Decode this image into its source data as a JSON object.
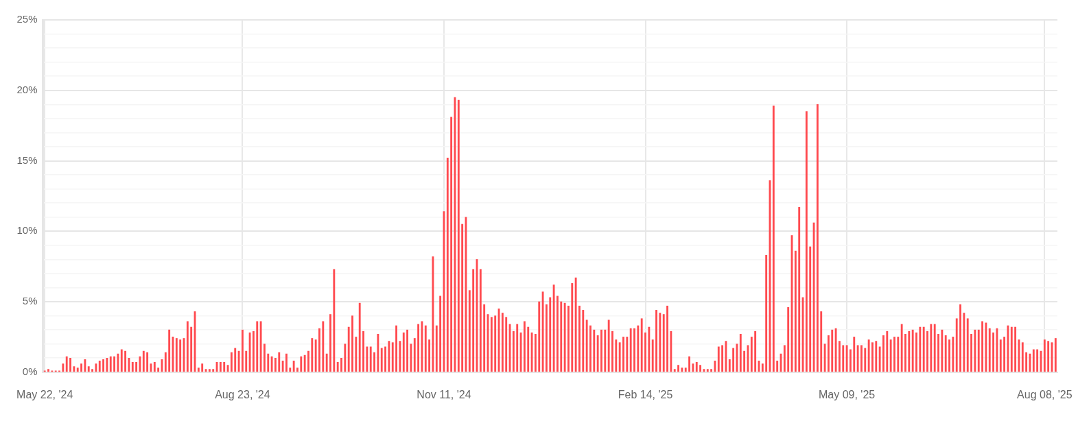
{
  "chart_data": {
    "type": "bar",
    "color": "#ff4a4f",
    "grid": true,
    "categories": [
      "May 22, '24",
      null,
      null,
      null,
      null,
      null,
      null,
      null,
      null,
      null,
      null,
      null,
      null,
      null,
      null,
      null,
      null,
      null,
      null,
      null,
      null,
      null,
      null,
      null,
      null,
      null,
      null,
      null,
      null,
      null,
      null,
      null,
      null,
      null,
      null,
      null,
      null,
      null,
      null,
      null,
      null,
      null,
      null,
      null,
      null,
      null,
      null,
      null,
      null,
      null,
      null,
      null,
      null,
      null,
      "Aug 23, '24",
      null,
      null,
      null,
      null,
      null,
      null,
      null,
      null,
      null,
      null,
      null,
      null,
      null,
      null,
      null,
      null,
      null,
      null,
      null,
      null,
      null,
      null,
      null,
      null,
      null,
      null,
      null,
      null,
      null,
      null,
      null,
      null,
      null,
      null,
      null,
      null,
      null,
      null,
      null,
      null,
      null,
      null,
      null,
      null,
      null,
      null,
      null,
      null,
      null,
      null,
      null,
      null,
      null,
      null,
      "Nov 11, '24",
      null,
      null,
      null,
      null,
      null,
      null,
      null,
      null,
      null,
      null,
      null,
      null,
      null,
      null,
      null,
      null,
      null,
      null,
      null,
      null,
      null,
      null,
      null,
      null,
      null,
      null,
      null,
      null,
      null,
      null,
      null,
      null,
      null,
      null,
      null,
      null,
      null,
      null,
      null,
      null,
      null,
      null,
      null,
      null,
      null,
      null,
      null,
      null,
      null,
      null,
      null,
      null,
      null,
      null,
      "Feb 14, '25",
      null,
      null,
      null,
      null,
      null,
      null,
      null,
      null,
      null,
      null,
      null,
      null,
      null,
      null,
      null,
      null,
      null,
      null,
      null,
      null,
      null,
      null,
      null,
      null,
      null,
      null,
      null,
      null,
      null,
      null,
      null,
      null,
      null,
      null,
      null,
      null,
      null,
      null,
      null,
      null,
      null,
      null,
      null,
      null,
      null,
      null,
      null,
      null,
      null,
      null,
      null,
      null,
      null,
      null,
      "May 09, '25",
      null,
      null,
      null,
      null,
      null,
      null,
      null,
      null,
      null,
      null,
      null,
      null,
      null,
      null,
      null,
      null,
      null,
      null,
      null,
      null,
      null,
      null,
      null,
      null,
      null,
      null,
      null,
      null,
      null,
      null,
      null,
      null,
      null,
      null,
      null,
      null,
      null,
      null,
      null,
      null,
      null,
      null,
      null,
      null,
      null,
      null,
      null,
      null,
      null,
      null,
      null,
      null,
      null,
      "Aug 08, '25",
      null,
      null,
      null
    ],
    "values": [
      0.1,
      0.2,
      0.1,
      0.1,
      0.1,
      0.6,
      1.1,
      1.0,
      0.4,
      0.3,
      0.6,
      0.9,
      0.4,
      0.2,
      0.6,
      0.8,
      0.9,
      1.0,
      1.1,
      1.1,
      1.3,
      1.6,
      1.5,
      1.0,
      0.7,
      0.7,
      1.1,
      1.5,
      1.4,
      0.6,
      0.7,
      0.3,
      0.9,
      1.4,
      3.0,
      2.5,
      2.4,
      2.3,
      2.4,
      3.6,
      3.2,
      4.3,
      0.3,
      0.6,
      0.2,
      0.2,
      0.2,
      0.7,
      0.7,
      0.7,
      0.5,
      1.4,
      1.7,
      1.5,
      3.0,
      1.5,
      2.8,
      2.9,
      3.6,
      3.6,
      2.0,
      1.3,
      1.1,
      1.0,
      1.4,
      0.8,
      1.3,
      0.3,
      0.8,
      0.3,
      1.1,
      1.2,
      1.5,
      2.4,
      2.3,
      3.1,
      3.6,
      1.3,
      4.1,
      7.3,
      0.7,
      1.0,
      2.0,
      3.2,
      4.0,
      2.5,
      4.9,
      2.9,
      1.8,
      1.8,
      1.4,
      2.7,
      1.7,
      1.8,
      2.2,
      2.1,
      3.3,
      2.2,
      2.8,
      3.0,
      2.0,
      2.4,
      3.4,
      3.6,
      3.3,
      2.3,
      8.2,
      3.3,
      5.4,
      11.4,
      15.2,
      18.1,
      19.5,
      19.3,
      10.5,
      11.0,
      5.8,
      7.3,
      8.0,
      7.3,
      4.8,
      4.1,
      3.9,
      4.0,
      4.5,
      4.2,
      3.9,
      3.4,
      2.9,
      3.4,
      2.8,
      3.6,
      3.2,
      2.8,
      2.7,
      5.0,
      5.7,
      4.8,
      5.3,
      6.2,
      5.4,
      5.0,
      4.9,
      4.7,
      6.3,
      6.7,
      4.7,
      4.4,
      3.7,
      3.3,
      3.0,
      2.6,
      3.0,
      3.0,
      3.7,
      2.9,
      2.3,
      2.1,
      2.5,
      2.5,
      3.1,
      3.1,
      3.3,
      3.8,
      2.8,
      3.2,
      2.3,
      4.4,
      4.2,
      4.1,
      4.7,
      2.9,
      0.2,
      0.5,
      0.3,
      0.3,
      1.1,
      0.6,
      0.7,
      0.5,
      0.2,
      0.2,
      0.2,
      0.8,
      1.8,
      1.9,
      2.2,
      0.9,
      1.7,
      2.0,
      2.7,
      1.5,
      1.9,
      2.5,
      2.9,
      0.8,
      0.6,
      8.3,
      13.6,
      18.9,
      0.8,
      1.3,
      1.9,
      4.6,
      9.7,
      8.6,
      11.7,
      5.3,
      18.5,
      8.9,
      10.6,
      19.0,
      4.3,
      2.0,
      2.6,
      3.0,
      3.1,
      2.2,
      1.9,
      1.9,
      1.6,
      2.5,
      1.9,
      1.9,
      1.7,
      2.3,
      2.1,
      2.2,
      1.8,
      2.6,
      2.9,
      2.3,
      2.5,
      2.5,
      3.4,
      2.7,
      2.9,
      3.0,
      2.8,
      3.2,
      3.2,
      2.9,
      3.4,
      3.4,
      2.7,
      3.0,
      2.6,
      2.3,
      2.5,
      3.8,
      4.8,
      4.2,
      3.8,
      2.7,
      3.0,
      3.0,
      3.6,
      3.5,
      3.1,
      2.8,
      3.1,
      2.3,
      2.5,
      3.3,
      3.2,
      3.2,
      2.3,
      2.1,
      1.4,
      1.3,
      1.6,
      1.6,
      1.5,
      2.3,
      2.2,
      2.1,
      2.4
    ],
    "ylim": [
      0,
      25
    ],
    "yticks": [
      {
        "value": 0,
        "label": "0%"
      },
      {
        "value": 1,
        "label": null
      },
      {
        "value": 2,
        "label": null
      },
      {
        "value": 3,
        "label": null
      },
      {
        "value": 4,
        "label": null
      },
      {
        "value": 5,
        "label": "5%"
      },
      {
        "value": 6,
        "label": null
      },
      {
        "value": 7,
        "label": null
      },
      {
        "value": 8,
        "label": null
      },
      {
        "value": 9,
        "label": null
      },
      {
        "value": 10,
        "label": "10%"
      },
      {
        "value": 11,
        "label": null
      },
      {
        "value": 12,
        "label": null
      },
      {
        "value": 13,
        "label": null
      },
      {
        "value": 14,
        "label": null
      },
      {
        "value": 15,
        "label": "15%"
      },
      {
        "value": 16,
        "label": null
      },
      {
        "value": 17,
        "label": null
      },
      {
        "value": 18,
        "label": null
      },
      {
        "value": 19,
        "label": null
      },
      {
        "value": 20,
        "label": "20%"
      },
      {
        "value": 21,
        "label": null
      },
      {
        "value": 22,
        "label": null
      },
      {
        "value": 23,
        "label": null
      },
      {
        "value": 24,
        "label": null
      },
      {
        "value": 25,
        "label": "25%"
      }
    ]
  }
}
